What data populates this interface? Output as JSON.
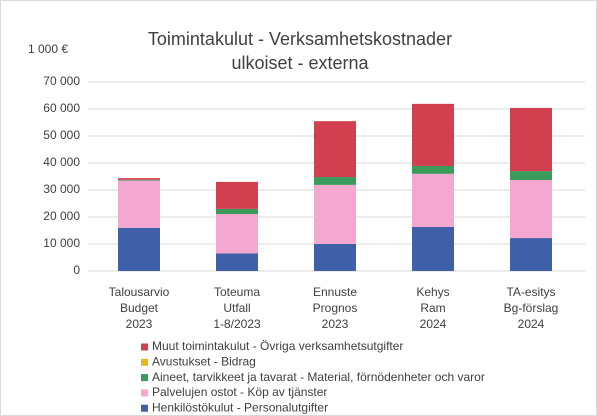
{
  "chart_data": {
    "type": "stacked_bar",
    "title": [
      "Toimintakulut - Verksamhetskostnader",
      "ulkoiset - externa"
    ],
    "unit": "1 000 €",
    "categories": [
      [
        "Talousarvio",
        "Budget",
        "2023"
      ],
      [
        "Toteuma",
        "Utfall",
        "1-8/2023"
      ],
      [
        "Ennuste",
        "Prognos",
        "2023"
      ],
      [
        "Kehys",
        "Ram",
        "2024"
      ],
      [
        "TA-esitys",
        "Bg-förslag",
        "2024"
      ]
    ],
    "series": [
      {
        "name": "Henkilöstökulut - Personalutgifter",
        "color": "#3f5fa8",
        "values": [
          16000,
          6500,
          10000,
          16300,
          12200
        ]
      },
      {
        "name": "Palvelujen ostot - Köp av tjänster",
        "color": "#f4a7cf",
        "values": [
          17500,
          14600,
          21900,
          19700,
          21500
        ]
      },
      {
        "name": "Aineet, tarvikkeet ja tavarat - Material, förnödenheter och varor",
        "color": "#3a9b5c",
        "values": [
          300,
          1900,
          2900,
          2900,
          3300
        ]
      },
      {
        "name": "Avustukset - Bidrag",
        "color": "#e6b820",
        "values": [
          0,
          0,
          0,
          0,
          0
        ]
      },
      {
        "name": "Muut toimintakulut - Övriga verksamhetsutgifter",
        "color": "#d2404f",
        "values": [
          600,
          10000,
          20700,
          23000,
          23400
        ]
      }
    ],
    "ylim": [
      0,
      70000
    ],
    "yticks": [
      0,
      {
        "value": 10000,
        "label": "10 000"
      },
      {
        "value": 20000,
        "label": "20 000"
      },
      {
        "value": 30000,
        "label": "30 000"
      },
      {
        "value": 40000,
        "label": "40 000"
      },
      {
        "value": 50000,
        "label": "50 000"
      },
      {
        "value": 60000,
        "label": "60 000"
      },
      {
        "value": 70000,
        "label": "70 000"
      }
    ],
    "grid": true,
    "legend": "bottom"
  }
}
